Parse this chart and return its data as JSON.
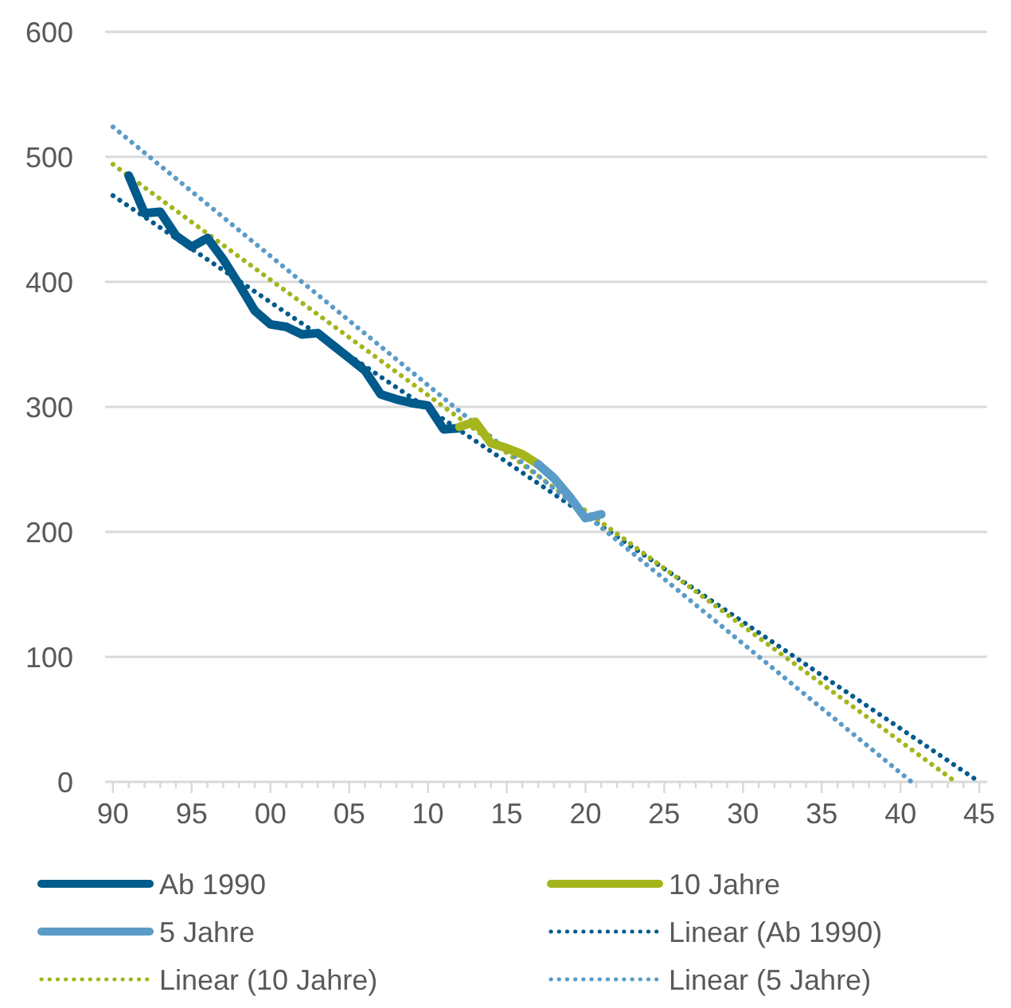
{
  "chart_data": {
    "type": "line",
    "xlim": [
      1989.5,
      2045.5
    ],
    "xticks": [
      {
        "value": 1990,
        "label": "90"
      },
      {
        "value": 1995,
        "label": "95"
      },
      {
        "value": 2000,
        "label": "00"
      },
      {
        "value": 2005,
        "label": "05"
      },
      {
        "value": 2010,
        "label": "10"
      },
      {
        "value": 2015,
        "label": "15"
      },
      {
        "value": 2020,
        "label": "20"
      },
      {
        "value": 2025,
        "label": "25"
      },
      {
        "value": 2030,
        "label": "30"
      },
      {
        "value": 2035,
        "label": "35"
      },
      {
        "value": 2040,
        "label": "40"
      },
      {
        "value": 2045,
        "label": "45"
      }
    ],
    "ylim": [
      0,
      600
    ],
    "yticks": [
      0,
      100,
      200,
      300,
      400,
      500,
      600
    ],
    "grid": "y",
    "legend": "bottom",
    "line_style": "solid",
    "series": [
      {
        "name": "Ab 1990",
        "color": "#005a8c",
        "x": [
          1991,
          1992,
          1993,
          1994,
          1995,
          1996,
          1997,
          1998,
          1999,
          2000,
          2001,
          2002,
          2003,
          2004,
          2005,
          2006,
          2007,
          2008,
          2009,
          2010,
          2011,
          2012
        ],
        "values": [
          485,
          455,
          456,
          437,
          428,
          435,
          418,
          398,
          377,
          366,
          364,
          358,
          359,
          349,
          339,
          329,
          310,
          306,
          303,
          301,
          282,
          283
        ]
      },
      {
        "name": "10 Jahre",
        "color": "#a5b51c",
        "x": [
          2012,
          2013,
          2014,
          2015,
          2016,
          2017
        ],
        "values": [
          284,
          288,
          271,
          267,
          262,
          254
        ]
      },
      {
        "name": "5 Jahre",
        "color": "#5b9bc8",
        "x": [
          2017,
          2018,
          2019,
          2020,
          2021
        ],
        "values": [
          254,
          243,
          228,
          211,
          214
        ]
      },
      {
        "name": "Linear (Ab 1990)",
        "color": "#005a8c",
        "line_style": "dotted",
        "x": [
          1990,
          2045
        ],
        "values": [
          469,
          0
        ]
      },
      {
        "name": "Linear (10 Jahre)",
        "color": "#a5b51c",
        "line_style": "dotted",
        "x": [
          1990,
          2043.5
        ],
        "values": [
          494,
          0
        ]
      },
      {
        "name": "Linear (5 Jahre)",
        "color": "#5b9bc8",
        "line_style": "dotted",
        "x": [
          1990,
          2040.7
        ],
        "values": [
          524,
          0
        ]
      }
    ]
  }
}
